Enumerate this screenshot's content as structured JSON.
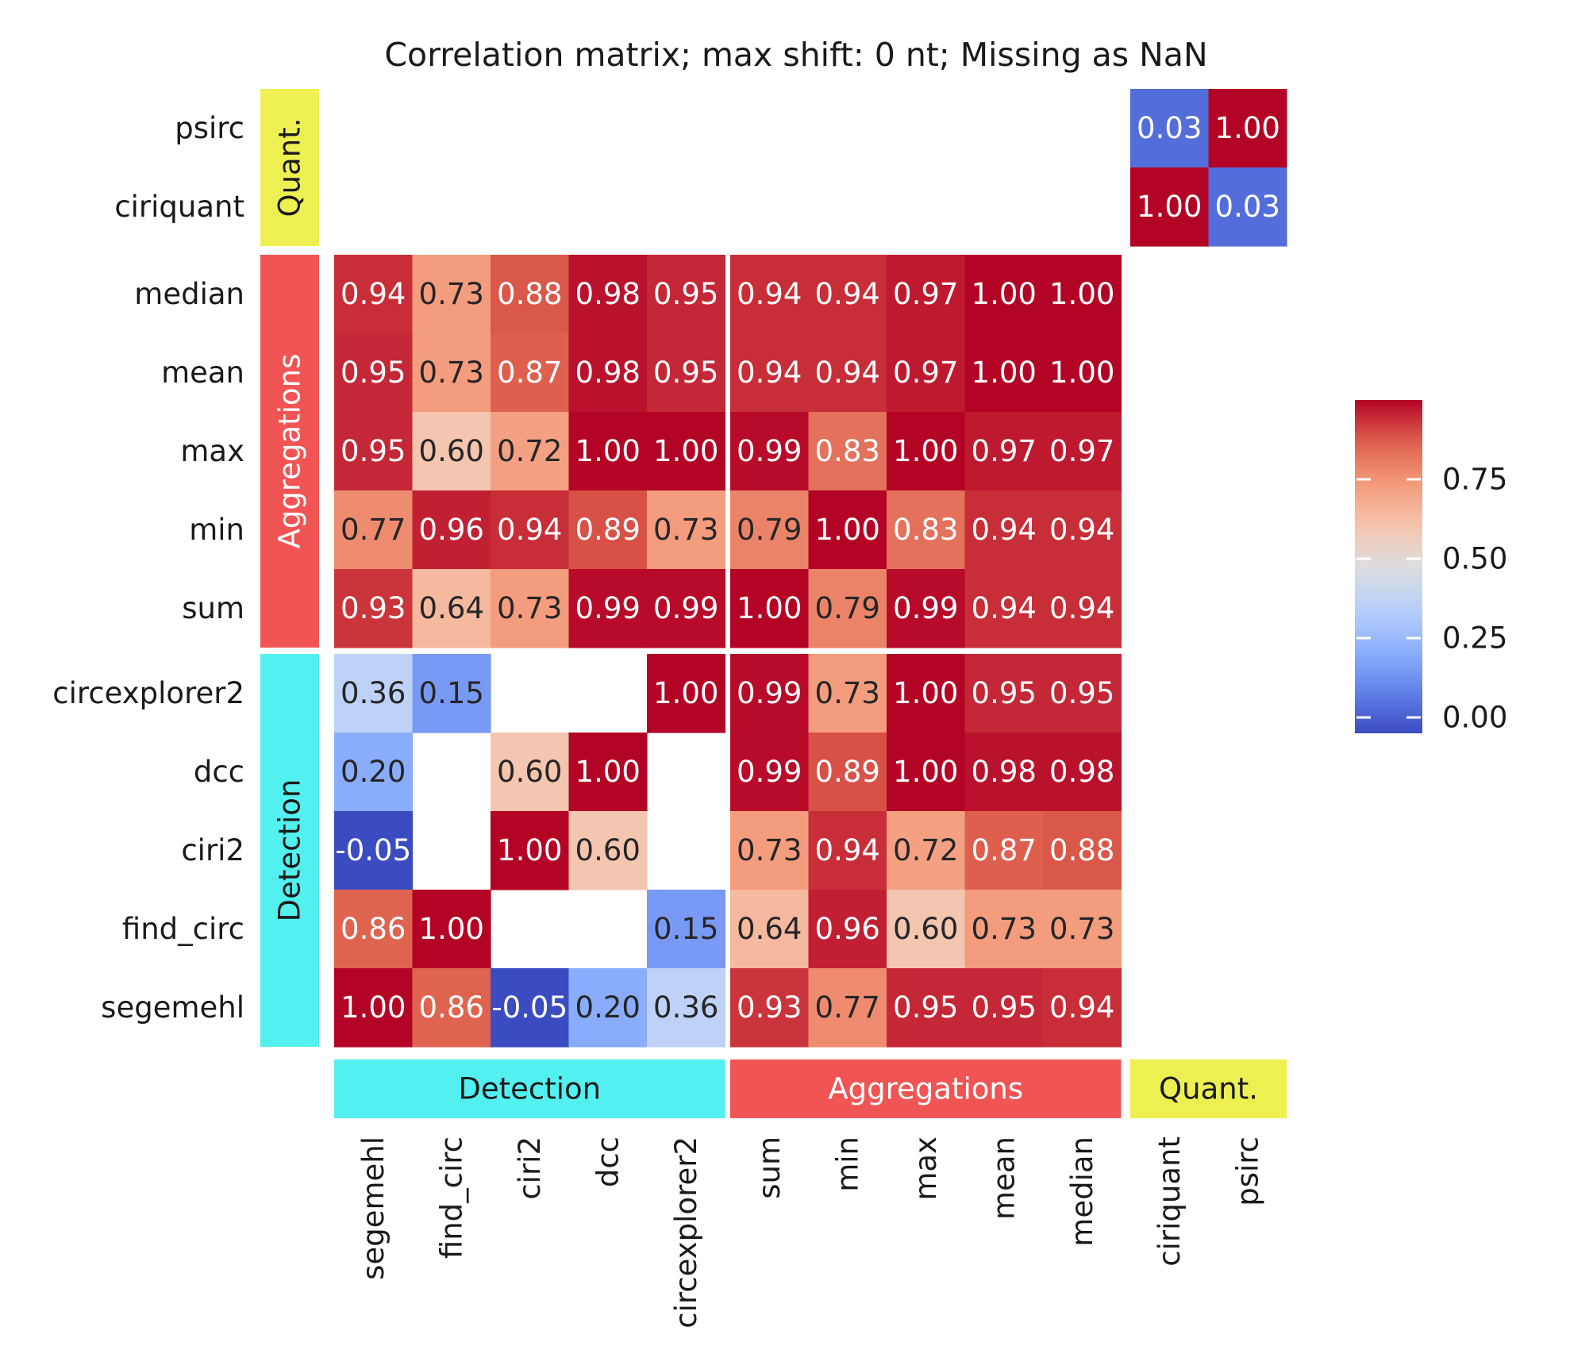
{
  "chart_data": {
    "type": "heatmap",
    "title": "Correlation matrix; max shift: 0 nt; Missing as NaN",
    "columns": [
      "segemehl",
      "find_circ",
      "ciri2",
      "dcc",
      "circexplorer2",
      "sum",
      "min",
      "max",
      "mean",
      "median",
      "ciriquant",
      "psirc"
    ],
    "rows": [
      "psirc",
      "ciriquant",
      "median",
      "mean",
      "max",
      "min",
      "sum",
      "circexplorer2",
      "dcc",
      "ciri2",
      "find_circ",
      "segemehl"
    ],
    "values": [
      [
        null,
        null,
        null,
        null,
        null,
        null,
        null,
        null,
        null,
        null,
        0.03,
        1.0
      ],
      [
        null,
        null,
        null,
        null,
        null,
        null,
        null,
        null,
        null,
        null,
        1.0,
        0.03
      ],
      [
        0.94,
        0.73,
        0.88,
        0.98,
        0.95,
        0.94,
        0.94,
        0.97,
        1.0,
        1.0,
        null,
        null
      ],
      [
        0.95,
        0.73,
        0.87,
        0.98,
        0.95,
        0.94,
        0.94,
        0.97,
        1.0,
        1.0,
        null,
        null
      ],
      [
        0.95,
        0.6,
        0.72,
        1.0,
        1.0,
        0.99,
        0.83,
        1.0,
        0.97,
        0.97,
        null,
        null
      ],
      [
        0.77,
        0.96,
        0.94,
        0.89,
        0.73,
        0.79,
        1.0,
        0.83,
        0.94,
        0.94,
        null,
        null
      ],
      [
        0.93,
        0.64,
        0.73,
        0.99,
        0.99,
        1.0,
        0.79,
        0.99,
        0.94,
        0.94,
        null,
        null
      ],
      [
        0.36,
        0.15,
        null,
        null,
        1.0,
        0.99,
        0.73,
        1.0,
        0.95,
        0.95,
        null,
        null
      ],
      [
        0.2,
        null,
        0.6,
        1.0,
        null,
        0.99,
        0.89,
        1.0,
        0.98,
        0.98,
        null,
        null
      ],
      [
        -0.05,
        null,
        1.0,
        0.6,
        null,
        0.73,
        0.94,
        0.72,
        0.87,
        0.88,
        null,
        null
      ],
      [
        0.86,
        1.0,
        null,
        null,
        0.15,
        0.64,
        0.96,
        0.6,
        0.73,
        0.73,
        null,
        null
      ],
      [
        1.0,
        0.86,
        -0.05,
        0.2,
        0.36,
        0.93,
        0.77,
        0.95,
        0.95,
        0.94,
        null,
        null
      ]
    ],
    "column_groups": [
      {
        "label": "Detection",
        "count": 5,
        "color": "#52f0ef",
        "text_color": "#1a1a1a"
      },
      {
        "label": "Aggregations",
        "count": 5,
        "color": "#f05454",
        "text_color": "#ffffff"
      },
      {
        "label": "Quant.",
        "count": 2,
        "color": "#eef052",
        "text_color": "#1a1a1a"
      }
    ],
    "row_groups": [
      {
        "label": "Quant.",
        "count": 2,
        "color": "#eef052",
        "text_color": "#1a1a1a"
      },
      {
        "label": "Aggregations",
        "count": 5,
        "color": "#f05454",
        "text_color": "#ffffff"
      },
      {
        "label": "Detection",
        "count": 5,
        "color": "#52f0ef",
        "text_color": "#1a1a1a"
      }
    ],
    "colormap": "coolwarm",
    "color_range": [
      -0.05,
      1.0
    ],
    "colorbar_ticks": [
      "0.00",
      "0.25",
      "0.50",
      "0.75"
    ],
    "value_format": "2 decimals",
    "grid": false,
    "legend": "right (colorbar)"
  }
}
